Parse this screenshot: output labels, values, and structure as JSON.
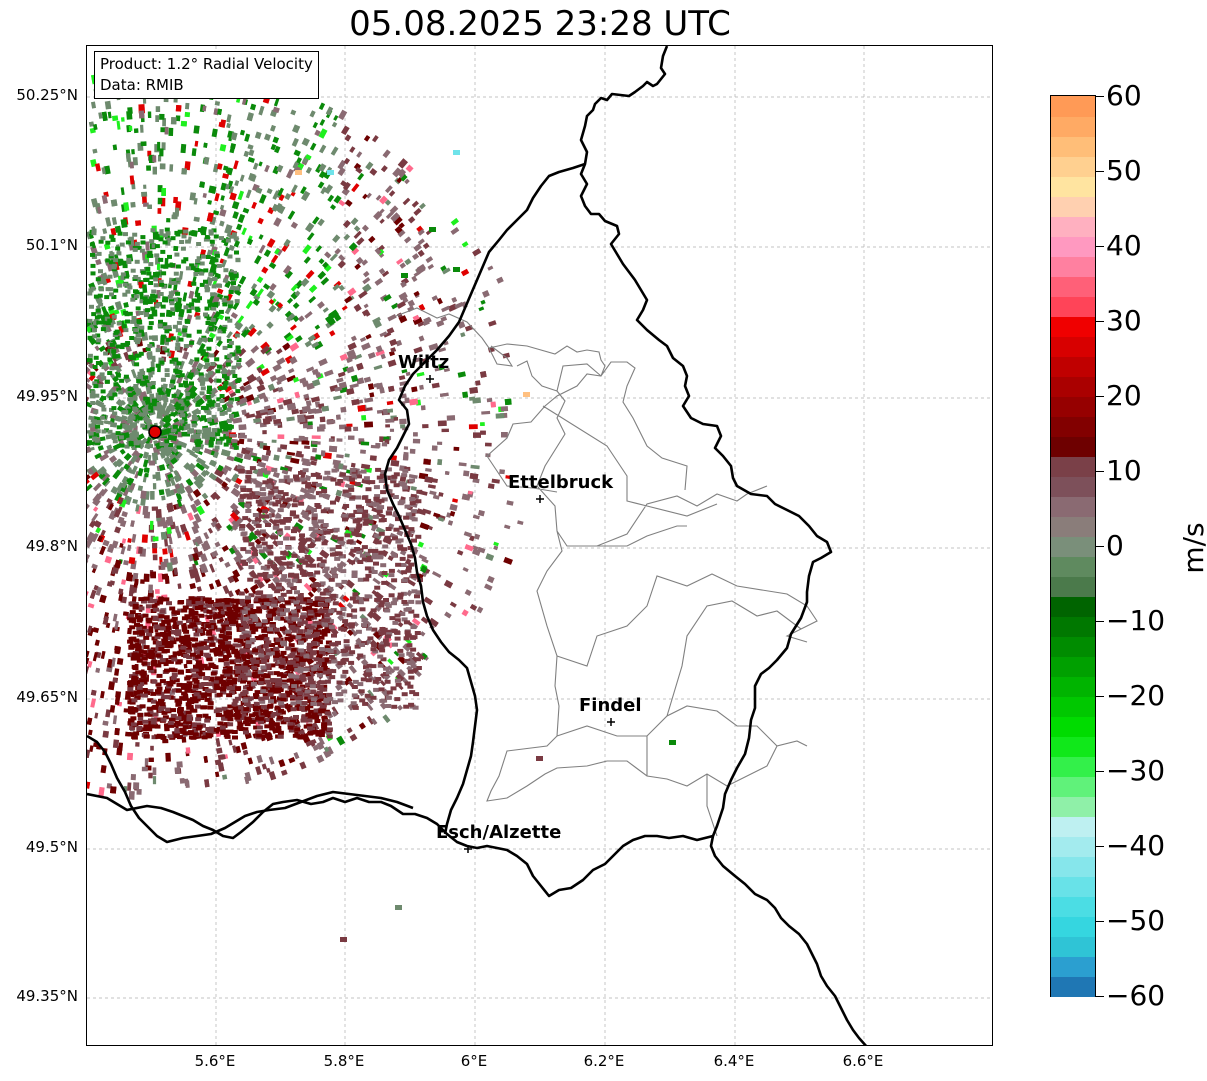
{
  "title": "05.08.2025 23:28 UTC",
  "info": {
    "product": "Product: 1.2° Radial Velocity",
    "data": "Data: RMIB"
  },
  "lat_labels": [
    "50.25°N",
    "50.1°N",
    "49.95°N",
    "49.8°N",
    "49.65°N",
    "49.5°N",
    "49.35°N"
  ],
  "lon_labels": [
    "5.6°E",
    "5.8°E",
    "6°E",
    "6.2°E",
    "6.4°E",
    "6.6°E"
  ],
  "cities": [
    {
      "name": "Wiltz"
    },
    {
      "name": "Ettelbruck"
    },
    {
      "name": "Findel"
    },
    {
      "name": "Esch/Alzette"
    }
  ],
  "colorbar": {
    "label": "m/s",
    "ticks": [
      "60",
      "50",
      "40",
      "30",
      "20",
      "10",
      "0",
      "−10",
      "−20",
      "−30",
      "−40",
      "−50",
      "−60"
    ],
    "range": [
      -60,
      60
    ],
    "colors": [
      "#1f77b4",
      "#2b9fd0",
      "#2fc4d6",
      "#35d6e0",
      "#4bdde4",
      "#68e2e8",
      "#86e6eb",
      "#a3ebee",
      "#bef0f1",
      "#8ff0a8",
      "#60f27a",
      "#33f04a",
      "#10e81a",
      "#00dc00",
      "#00c800",
      "#00b400",
      "#00a000",
      "#008c00",
      "#007800",
      "#006400",
      "#4b7a4b",
      "#5f8a5f",
      "#7a8f7a",
      "#8a7d7a",
      "#8a6a72",
      "#7d505a",
      "#7a4048",
      "#6e0000",
      "#820000",
      "#960000",
      "#aa0000",
      "#c00000",
      "#d80000",
      "#f00000",
      "#ff4458",
      "#ff6078",
      "#ff80a0",
      "#ff99c0",
      "#ffb0c0",
      "#ffd0b0",
      "#ffe4a0",
      "#ffd090",
      "#ffbe78",
      "#ffaa64",
      "#ff9a56"
    ]
  },
  "radar_site": {
    "color": "#e00000"
  },
  "radar_palette": {
    "dark_red": "#6e0000",
    "maroon": "#7a3a42",
    "mauve": "#8a6a72",
    "grey_green": "#6e8a6e",
    "green": "#0a8a0a",
    "bright_green": "#1ef01e",
    "red": "#e00000",
    "pink": "#ff6a8c",
    "cyan": "#6fe3ea",
    "orange": "#ffc080"
  }
}
